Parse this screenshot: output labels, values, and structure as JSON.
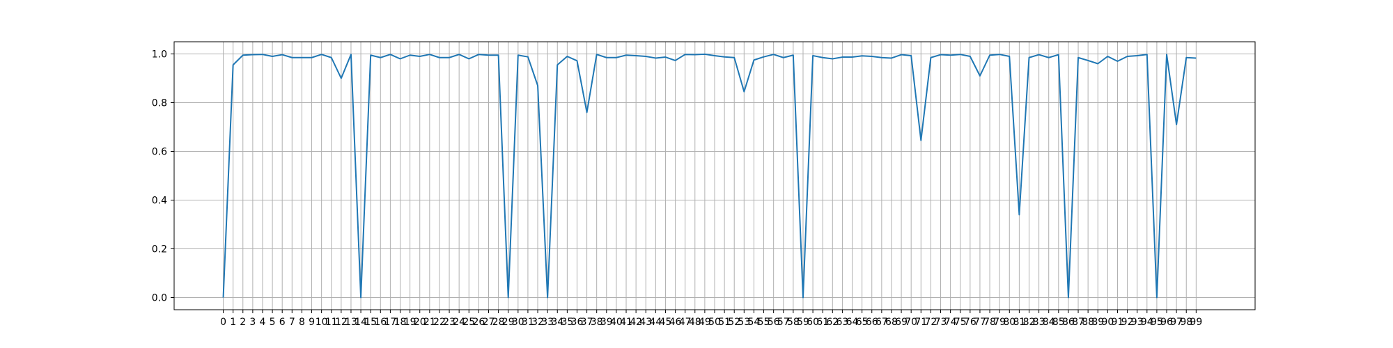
{
  "colors": {
    "line": "#1f77b4",
    "grid": "#b0b0b0",
    "axes": "#000000",
    "background": "#ffffff"
  },
  "chart_data": {
    "type": "line",
    "title": "",
    "xlabel": "",
    "ylabel": "",
    "grid": true,
    "xlim": [
      -5,
      105
    ],
    "ylim": [
      -0.05,
      1.05
    ],
    "xticks": [
      0,
      1,
      2,
      3,
      4,
      5,
      6,
      7,
      8,
      9,
      10,
      11,
      12,
      13,
      14,
      15,
      16,
      17,
      18,
      19,
      20,
      21,
      22,
      23,
      24,
      25,
      26,
      27,
      28,
      29,
      30,
      31,
      32,
      33,
      34,
      35,
      36,
      37,
      38,
      39,
      40,
      41,
      42,
      43,
      44,
      45,
      46,
      47,
      48,
      49,
      50,
      51,
      52,
      53,
      54,
      55,
      56,
      57,
      58,
      59,
      60,
      61,
      62,
      63,
      64,
      65,
      66,
      67,
      68,
      69,
      70,
      71,
      72,
      73,
      74,
      75,
      76,
      77,
      78,
      79,
      80,
      81,
      82,
      83,
      84,
      85,
      86,
      87,
      88,
      89,
      90,
      91,
      92,
      93,
      94,
      95,
      96,
      97,
      98,
      99
    ],
    "yticks": [
      0.0,
      0.2,
      0.4,
      0.6,
      0.8,
      1.0
    ],
    "ytick_labels": [
      "0.0",
      "0.2",
      "0.4",
      "0.6",
      "0.8",
      "1.0"
    ],
    "series": [
      {
        "x": [
          0,
          1,
          2,
          3,
          4,
          5,
          6,
          7,
          8,
          9,
          10,
          11,
          12,
          13,
          14,
          15,
          16,
          17,
          18,
          19,
          20,
          21,
          22,
          23,
          24,
          25,
          26,
          27,
          28,
          29,
          30,
          31,
          32,
          33,
          34,
          35,
          36,
          37,
          38,
          39,
          40,
          41,
          42,
          43,
          44,
          45,
          46,
          47,
          48,
          49,
          50,
          51,
          52,
          53,
          54,
          55,
          56,
          57,
          58,
          59,
          60,
          61,
          62,
          63,
          64,
          65,
          66,
          67,
          68,
          69,
          70,
          71,
          72,
          73,
          74,
          75,
          76,
          77,
          78,
          79,
          80,
          81,
          82,
          83,
          84,
          85,
          86,
          87,
          88,
          89,
          90,
          91,
          92,
          93,
          94,
          95,
          96,
          97,
          98,
          99
        ],
        "values": [
          0.0,
          0.955,
          0.995,
          0.997,
          0.998,
          0.99,
          0.997,
          0.985,
          0.985,
          0.985,
          0.998,
          0.985,
          0.9,
          0.998,
          0.0,
          0.995,
          0.985,
          0.998,
          0.98,
          0.995,
          0.99,
          0.998,
          0.985,
          0.985,
          0.998,
          0.98,
          0.998,
          0.995,
          0.995,
          0.0,
          0.995,
          0.988,
          0.87,
          0.0,
          0.955,
          0.99,
          0.972,
          0.76,
          0.998,
          0.985,
          0.985,
          0.995,
          0.993,
          0.99,
          0.983,
          0.987,
          0.973,
          0.998,
          0.997,
          0.999,
          0.993,
          0.988,
          0.985,
          0.845,
          0.975,
          0.988,
          0.998,
          0.985,
          0.995,
          0.0,
          0.993,
          0.985,
          0.98,
          0.987,
          0.987,
          0.992,
          0.99,
          0.985,
          0.983,
          0.997,
          0.993,
          0.645,
          0.985,
          0.997,
          0.995,
          0.998,
          0.99,
          0.91,
          0.995,
          0.998,
          0.99,
          0.34,
          0.985,
          0.997,
          0.985,
          0.997,
          0.0,
          0.985,
          0.973,
          0.96,
          0.99,
          0.97,
          0.99,
          0.993,
          0.998,
          0.0,
          0.998,
          0.71,
          0.985,
          0.983
        ]
      }
    ]
  }
}
